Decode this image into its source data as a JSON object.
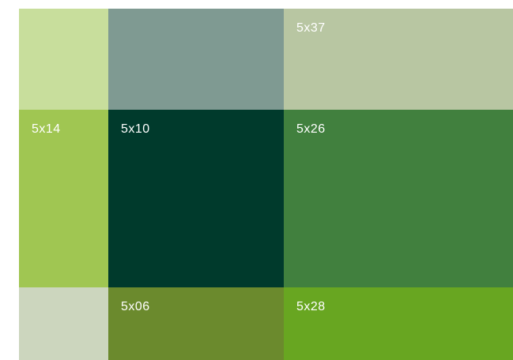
{
  "swatches": [
    {
      "id": "r1c1",
      "label": "",
      "color": "#c8de9c"
    },
    {
      "id": "r1c2",
      "label": "",
      "color": "#7f9a92"
    },
    {
      "id": "r1c3",
      "label": "5x37",
      "color": "#b8c6a2"
    },
    {
      "id": "r2c1",
      "label": "5x14",
      "color": "#a0c652"
    },
    {
      "id": "r2c2",
      "label": "5x10",
      "color": "#003a2c"
    },
    {
      "id": "r2c3",
      "label": "5x26",
      "color": "#41803e"
    },
    {
      "id": "r3c1",
      "label": "",
      "color": "#ccd6be"
    },
    {
      "id": "r3c2",
      "label": "5x06",
      "color": "#6b8a2d"
    },
    {
      "id": "r3c3",
      "label": "5x28",
      "color": "#68a621"
    }
  ]
}
